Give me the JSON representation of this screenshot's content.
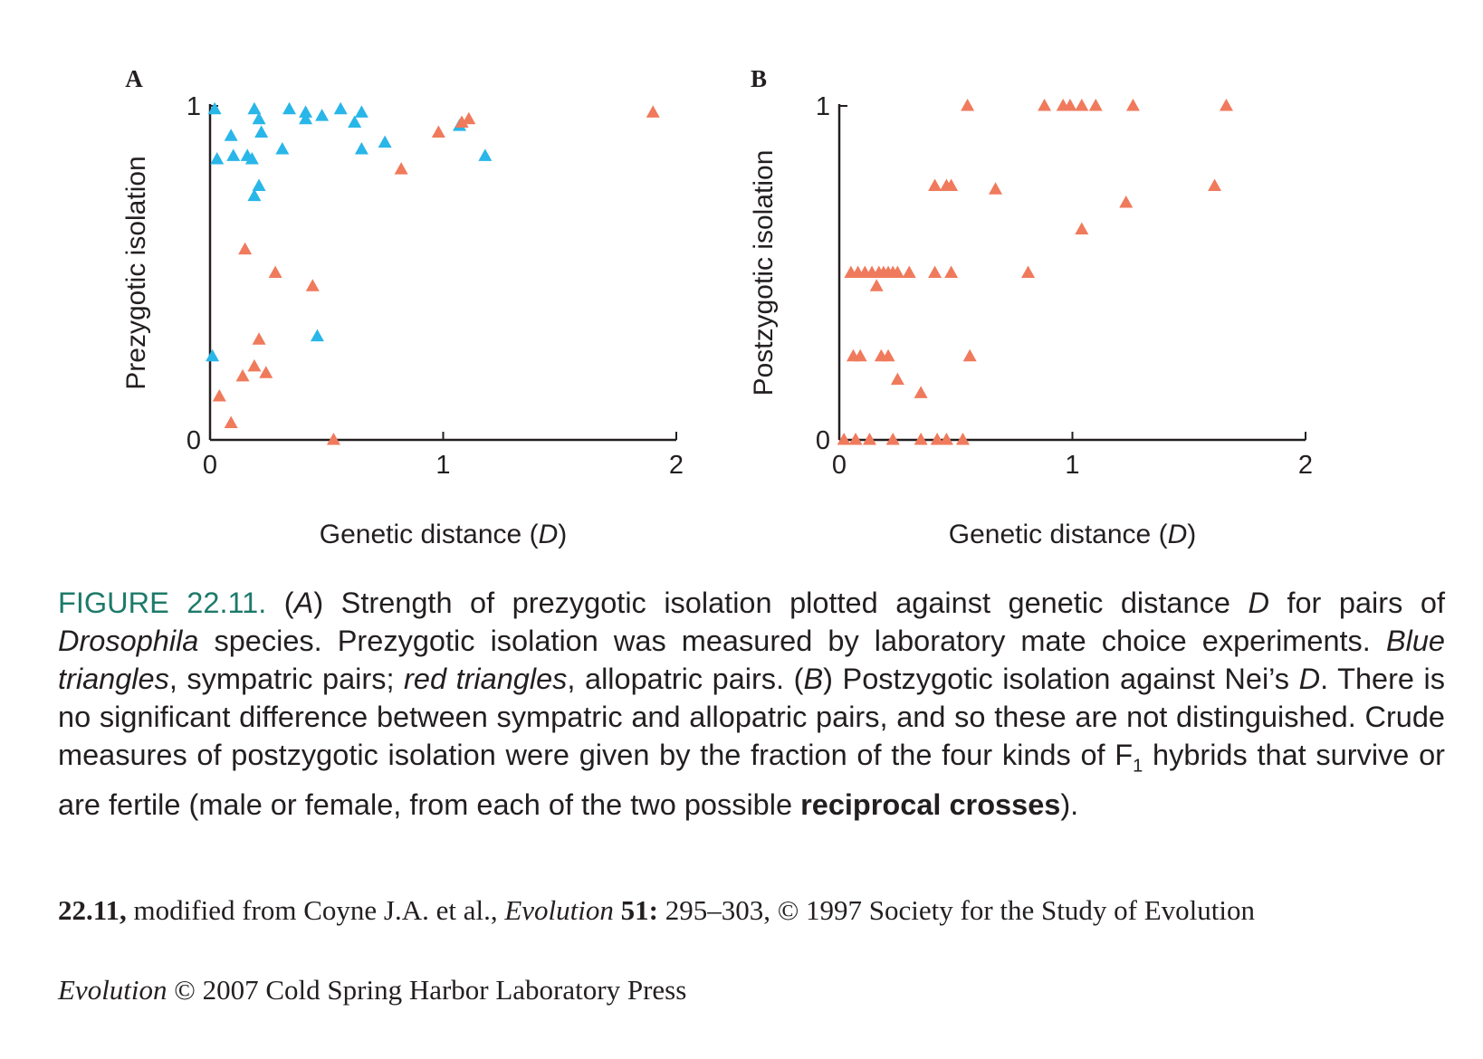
{
  "chart_data": [
    {
      "type": "scatter",
      "panel_label": "A",
      "xlabel": "Genetic distance (D)",
      "ylabel": "Prezygotic isolation",
      "xlim": [
        0,
        2
      ],
      "ylim": [
        0,
        1
      ],
      "xticks": [
        "0",
        "1",
        "2"
      ],
      "yticks": [
        "0",
        "1"
      ],
      "grid": false,
      "series": [
        {
          "color": "#29b6e8",
          "points": [
            [
              0.02,
              0.99
            ],
            [
              0.03,
              0.84
            ],
            [
              0.09,
              0.91
            ],
            [
              0.1,
              0.85
            ],
            [
              0.16,
              0.85
            ],
            [
              0.18,
              0.84
            ],
            [
              0.19,
              0.99
            ],
            [
              0.21,
              0.96
            ],
            [
              0.22,
              0.92
            ],
            [
              0.19,
              0.73
            ],
            [
              0.21,
              0.76
            ],
            [
              0.31,
              0.87
            ],
            [
              0.34,
              0.99
            ],
            [
              0.41,
              0.98
            ],
            [
              0.41,
              0.96
            ],
            [
              0.48,
              0.97
            ],
            [
              0.56,
              0.99
            ],
            [
              0.62,
              0.95
            ],
            [
              0.65,
              0.98
            ],
            [
              0.65,
              0.87
            ],
            [
              0.75,
              0.89
            ],
            [
              1.07,
              0.94
            ],
            [
              1.18,
              0.85
            ],
            [
              0.46,
              0.31
            ],
            [
              0.01,
              0.25
            ]
          ]
        },
        {
          "color": "#f07a5c",
          "points": [
            [
              0.15,
              0.57
            ],
            [
              0.28,
              0.5
            ],
            [
              0.44,
              0.46
            ],
            [
              0.21,
              0.3
            ],
            [
              0.19,
              0.22
            ],
            [
              0.14,
              0.19
            ],
            [
              0.24,
              0.2
            ],
            [
              0.04,
              0.13
            ],
            [
              0.09,
              0.05
            ],
            [
              0.53,
              0.0
            ],
            [
              0.82,
              0.81
            ],
            [
              0.98,
              0.92
            ],
            [
              1.08,
              0.95
            ],
            [
              1.11,
              0.96
            ],
            [
              1.9,
              0.98
            ]
          ]
        }
      ]
    },
    {
      "type": "scatter",
      "panel_label": "B",
      "xlabel": "Genetic distance (D)",
      "ylabel": "Postzygotic isolation",
      "xlim": [
        0,
        2
      ],
      "ylim": [
        0,
        1
      ],
      "xticks": [
        "0",
        "1",
        "2"
      ],
      "yticks": [
        "0",
        "1"
      ],
      "grid": false,
      "series": [
        {
          "color": "#f07a5c",
          "points": [
            [
              0.55,
              1.0
            ],
            [
              0.88,
              1.0
            ],
            [
              0.96,
              1.0
            ],
            [
              0.99,
              1.0
            ],
            [
              1.04,
              1.0
            ],
            [
              1.1,
              1.0
            ],
            [
              1.26,
              1.0
            ],
            [
              1.66,
              1.0
            ],
            [
              0.41,
              0.76
            ],
            [
              0.46,
              0.76
            ],
            [
              0.48,
              0.76
            ],
            [
              0.67,
              0.75
            ],
            [
              1.61,
              0.76
            ],
            [
              1.23,
              0.71
            ],
            [
              1.04,
              0.63
            ],
            [
              0.05,
              0.5
            ],
            [
              0.08,
              0.5
            ],
            [
              0.11,
              0.5
            ],
            [
              0.14,
              0.5
            ],
            [
              0.17,
              0.5
            ],
            [
              0.19,
              0.5
            ],
            [
              0.21,
              0.5
            ],
            [
              0.23,
              0.5
            ],
            [
              0.25,
              0.5
            ],
            [
              0.3,
              0.5
            ],
            [
              0.41,
              0.5
            ],
            [
              0.48,
              0.5
            ],
            [
              0.81,
              0.5
            ],
            [
              0.16,
              0.46
            ],
            [
              0.06,
              0.25
            ],
            [
              0.09,
              0.25
            ],
            [
              0.18,
              0.25
            ],
            [
              0.21,
              0.25
            ],
            [
              0.56,
              0.25
            ],
            [
              0.25,
              0.18
            ],
            [
              0.35,
              0.14
            ],
            [
              0.02,
              0.0
            ],
            [
              0.07,
              0.0
            ],
            [
              0.13,
              0.0
            ],
            [
              0.23,
              0.0
            ],
            [
              0.35,
              0.0
            ],
            [
              0.42,
              0.0
            ],
            [
              0.46,
              0.0
            ],
            [
              0.53,
              0.0
            ]
          ]
        }
      ]
    }
  ],
  "caption": {
    "label": "FIGURE 22.11.",
    "s1": "(",
    "s1_i": "A",
    "s2": ") Strength of prezygotic isolation plotted against genetic distance ",
    "s2_i": "D",
    "s3": " for pairs of ",
    "s3_i": "Drosophila",
    "s4": " species. Prezygotic isolation was measured by laboratory mate choice experiments. ",
    "s4_i": "Blue triangles",
    "s5": ", sympatric pairs; ",
    "s5_i": "red triangles",
    "s6": ", allopatric pairs. (",
    "s6_i": "B",
    "s7": ") Postzygotic isolation against Nei’s ",
    "s7_i": "D",
    "s8": ". There is no significant difference between sympatric and allopatric pairs, and so these are not distinguished. Crude measures of postzygotic isolation were given by the fraction of the four kinds of F",
    "s8_sub": "1",
    "s9": " hybrids that survive or are fertile (male or female, from each of the two possible ",
    "s9_b": "reciprocal crosses",
    "s10": ")."
  },
  "credit": {
    "num": "22.11,",
    "t1": " modified from Coyne J.A. et al., ",
    "journal": "Evolution",
    "vol": " 51:",
    "t2": " 295–303, © 1997 Society for the Study of Evolution"
  },
  "copyright": {
    "title": "Evolution",
    "rest": " © 2007 Cold Spring Harbor Laboratory Press"
  }
}
